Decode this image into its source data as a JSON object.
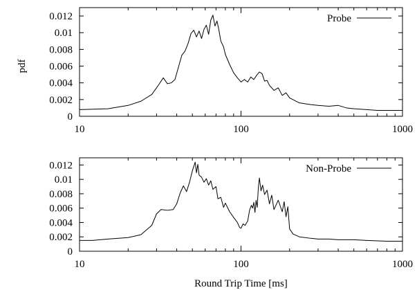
{
  "chart_data": [
    {
      "type": "line",
      "panel": "top",
      "title": "",
      "xlabel": "",
      "ylabel": "pdf",
      "xscale": "log",
      "xlim": [
        10,
        1000
      ],
      "ylim": [
        0,
        0.013
      ],
      "xticks": [
        10,
        100,
        1000
      ],
      "xtick_labels": [
        "10",
        "100",
        "1000"
      ],
      "yticks": [
        0,
        0.002,
        0.004,
        0.006,
        0.008,
        0.01,
        0.012
      ],
      "ytick_labels": [
        "0",
        "0.002",
        "0.004",
        "0.006",
        "0.008",
        "0.01",
        "0.012"
      ],
      "grid": false,
      "legend_position": "top-right",
      "line_color": "#000000",
      "series": [
        {
          "name": "Probe",
          "x": [
            10,
            15,
            20,
            24,
            28,
            31,
            33,
            35,
            37,
            39,
            41,
            43,
            45,
            47,
            49,
            51,
            53,
            55,
            57,
            59,
            61,
            63,
            65,
            67,
            69,
            71,
            73,
            75,
            78,
            80,
            85,
            90,
            95,
            100,
            105,
            110,
            115,
            120,
            125,
            130,
            135,
            140,
            145,
            150,
            160,
            170,
            180,
            190,
            200,
            230,
            270,
            300,
            350,
            400,
            450,
            500,
            600,
            700,
            800,
            1000
          ],
          "y": [
            0.0008,
            0.0009,
            0.0013,
            0.0018,
            0.0026,
            0.0038,
            0.0046,
            0.0039,
            0.004,
            0.0044,
            0.0059,
            0.0073,
            0.0078,
            0.0087,
            0.0099,
            0.0103,
            0.0095,
            0.0102,
            0.0093,
            0.0104,
            0.0109,
            0.0098,
            0.0115,
            0.0121,
            0.0108,
            0.0114,
            0.0103,
            0.009,
            0.0083,
            0.0074,
            0.0062,
            0.0052,
            0.0046,
            0.0041,
            0.0044,
            0.0041,
            0.0047,
            0.0044,
            0.0049,
            0.0053,
            0.0051,
            0.0042,
            0.0043,
            0.0037,
            0.0031,
            0.0034,
            0.0025,
            0.0028,
            0.0022,
            0.0016,
            0.0014,
            0.0013,
            0.0012,
            0.0013,
            0.001,
            0.0009,
            0.0008,
            0.0007,
            0.0007,
            0.0007
          ]
        }
      ]
    },
    {
      "type": "line",
      "panel": "bottom",
      "title": "",
      "xlabel": "Round Trip Time [ms]",
      "ylabel": "",
      "xscale": "log",
      "xlim": [
        10,
        1000
      ],
      "ylim": [
        0,
        0.013
      ],
      "xticks": [
        10,
        100,
        1000
      ],
      "xtick_labels": [
        "10",
        "100",
        "1000"
      ],
      "yticks": [
        0,
        0.002,
        0.004,
        0.006,
        0.008,
        0.01,
        0.012
      ],
      "ytick_labels": [
        "0",
        "0.002",
        "0.004",
        "0.006",
        "0.008",
        "0.01",
        "0.012"
      ],
      "grid": false,
      "legend_position": "top-right",
      "line_color": "#000000",
      "series": [
        {
          "name": "Non-Probe",
          "x": [
            10,
            12,
            15,
            20,
            24,
            28,
            30,
            32,
            35,
            38,
            40,
            42,
            44,
            46,
            48,
            50,
            52,
            53,
            54,
            55,
            57,
            59,
            61,
            63,
            65,
            67,
            70,
            72,
            75,
            78,
            80,
            85,
            90,
            95,
            98,
            100,
            103,
            106,
            110,
            113,
            116,
            118,
            120,
            122,
            124,
            126,
            128,
            130,
            133,
            136,
            140,
            145,
            150,
            155,
            160,
            170,
            180,
            185,
            190,
            195,
            200,
            210,
            230,
            270,
            300,
            350,
            400,
            500,
            600,
            800,
            1000
          ],
          "y": [
            0.0015,
            0.0015,
            0.0017,
            0.0019,
            0.0023,
            0.0036,
            0.0052,
            0.0058,
            0.0057,
            0.0058,
            0.0066,
            0.0081,
            0.0091,
            0.0083,
            0.0096,
            0.0112,
            0.0124,
            0.0109,
            0.0121,
            0.0106,
            0.0103,
            0.0096,
            0.0101,
            0.0092,
            0.0098,
            0.0086,
            0.009,
            0.0073,
            0.0075,
            0.0061,
            0.0067,
            0.0055,
            0.0047,
            0.004,
            0.0033,
            0.0032,
            0.0038,
            0.0036,
            0.0042,
            0.0057,
            0.0064,
            0.006,
            0.0068,
            0.0054,
            0.0071,
            0.0061,
            0.0088,
            0.0102,
            0.0084,
            0.0092,
            0.0079,
            0.0085,
            0.0066,
            0.0078,
            0.0058,
            0.0071,
            0.0055,
            0.0069,
            0.0048,
            0.0062,
            0.0031,
            0.0024,
            0.002,
            0.0018,
            0.0017,
            0.0017,
            0.0016,
            0.0016,
            0.0015,
            0.0014,
            0.0014
          ]
        }
      ]
    }
  ]
}
